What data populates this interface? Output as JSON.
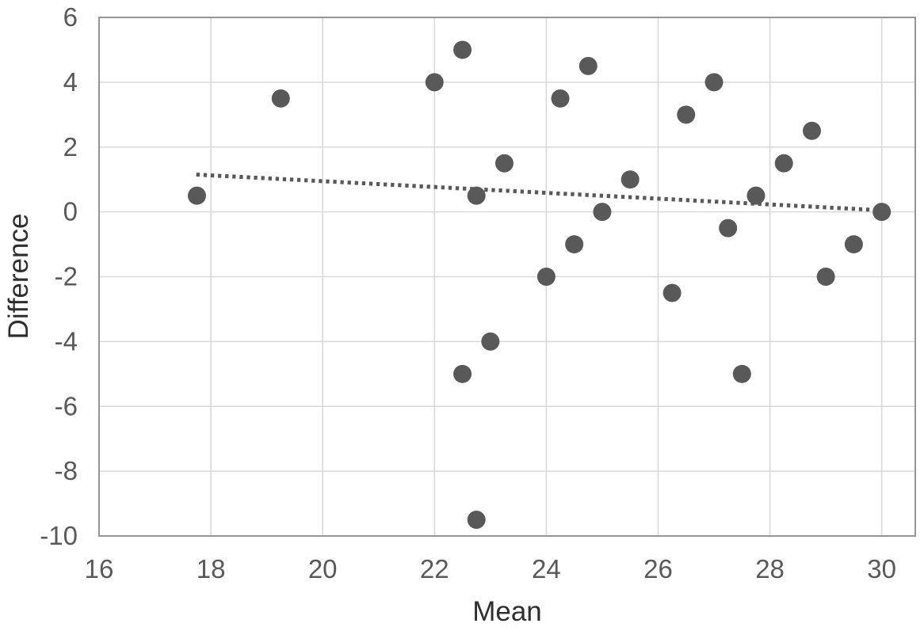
{
  "chart_data": {
    "type": "scatter",
    "title": "",
    "xlabel": "Mean",
    "ylabel": "Difference",
    "xlim": [
      16,
      30.6
    ],
    "ylim": [
      -10,
      6
    ],
    "x_ticks": [
      16,
      18,
      20,
      22,
      24,
      26,
      28,
      30
    ],
    "y_ticks": [
      6,
      4,
      2,
      0,
      -2,
      -4,
      -6,
      -8,
      -10
    ],
    "grid": true,
    "legend": "none",
    "marker": {
      "shape": "circle",
      "radius_px": 11.5
    },
    "points": [
      {
        "x": 17.75,
        "y": 0.5
      },
      {
        "x": 19.25,
        "y": 3.5
      },
      {
        "x": 22,
        "y": 4
      },
      {
        "x": 22.5,
        "y": 5
      },
      {
        "x": 22.5,
        "y": -5
      },
      {
        "x": 22.75,
        "y": 0.5
      },
      {
        "x": 22.75,
        "y": -9.5
      },
      {
        "x": 23,
        "y": -4
      },
      {
        "x": 23.25,
        "y": 1.5
      },
      {
        "x": 24,
        "y": -2
      },
      {
        "x": 24.25,
        "y": 3.5
      },
      {
        "x": 24.5,
        "y": -1
      },
      {
        "x": 24.75,
        "y": 4.5
      },
      {
        "x": 25,
        "y": 0
      },
      {
        "x": 25.5,
        "y": 1
      },
      {
        "x": 26.25,
        "y": -2.5
      },
      {
        "x": 26.5,
        "y": 3
      },
      {
        "x": 27,
        "y": 4
      },
      {
        "x": 27.25,
        "y": -0.5
      },
      {
        "x": 27.5,
        "y": -5
      },
      {
        "x": 27.75,
        "y": 0.5
      },
      {
        "x": 28.25,
        "y": 1.5
      },
      {
        "x": 28.75,
        "y": 2.5
      },
      {
        "x": 29,
        "y": -2
      },
      {
        "x": 29.5,
        "y": -1
      },
      {
        "x": 30,
        "y": 0
      }
    ],
    "trendline": {
      "style": "dotted",
      "start": {
        "x": 17.74,
        "y": 1.15
      },
      "end": {
        "x": 30.1,
        "y": 0.04
      }
    },
    "colors": {
      "marker": "#595959",
      "trendline": "#595959",
      "gridline": "#d9d9d9",
      "plot_border": "#959595",
      "tick_label": "#595959",
      "axis_title": "#2e2e2e",
      "background": "#ffffff"
    }
  }
}
